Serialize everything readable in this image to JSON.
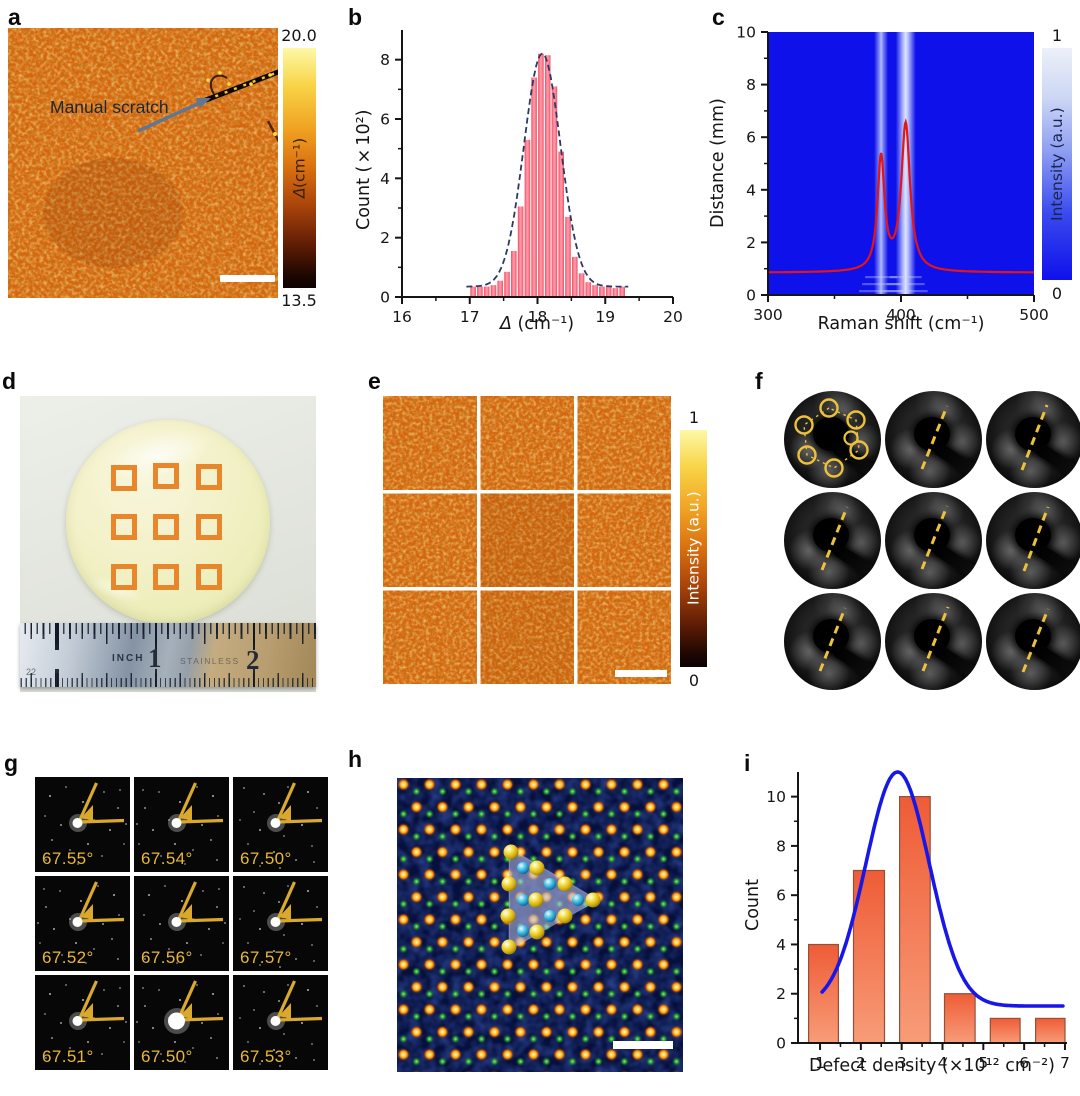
{
  "panels": {
    "a": {
      "label": "a",
      "annotation": "Manual scratch",
      "colorbar": {
        "max": "20.0",
        "min": "13.5",
        "label": "Δ (cm⁻¹)",
        "symbol": "Δ",
        "units": " (cm⁻¹)"
      }
    },
    "b": {
      "label": "b"
    },
    "c": {
      "label": "c"
    },
    "d": {
      "label": "d",
      "ruler": {
        "unit_word": "INCH",
        "mark_1": "1",
        "mark_2": "2",
        "brand": "STAINLESS",
        "cm_mark": "22"
      }
    },
    "e": {
      "label": "e",
      "colorbar": {
        "max": "1",
        "min": "0",
        "label": "Intensity (a.u.)"
      }
    },
    "f": {
      "label": "f"
    },
    "g": {
      "label": "g",
      "angles": [
        "67.55°",
        "67.54°",
        "67.50°",
        "67.52°",
        "67.56°",
        "67.57°",
        "67.51°",
        "67.50°",
        "67.53°"
      ]
    },
    "h": {
      "label": "h"
    },
    "i": {
      "label": "i"
    }
  },
  "chart_data": [
    {
      "panel": "b",
      "type": "bar",
      "xlabel": "Δ (cm⁻¹)",
      "xlabel_symbol": "Δ",
      "xlabel_units": " (cm⁻¹)",
      "ylabel": "Count (×10²)",
      "xlim": [
        16,
        20
      ],
      "ylim": [
        0,
        9
      ],
      "xticks": [
        "16",
        "17",
        "18",
        "19",
        "20"
      ],
      "yticks": [
        "0",
        "2",
        "4",
        "6",
        "8"
      ],
      "bin_start": 17.0,
      "bin_width": 0.1,
      "counts_x100": [
        0.35,
        0.35,
        0.35,
        0.4,
        0.55,
        0.85,
        1.55,
        3.05,
        5.3,
        7.4,
        8.2,
        8.15,
        7.1,
        4.9,
        2.7,
        1.35,
        0.8,
        0.5,
        0.4,
        0.35,
        0.35,
        0.3,
        0.35
      ],
      "fit": {
        "shape": "gaussian",
        "center": 18.07,
        "sigma": 0.27,
        "amplitude": 8.2,
        "baseline": 0.35,
        "domain": [
          16.95,
          19.35
        ]
      },
      "bar_color": "#ef4f66",
      "fit_color": "#2b3a64",
      "legend": "none",
      "grid": false
    },
    {
      "panel": "c",
      "type": "heatmap",
      "xlabel": "Raman shift (cm⁻¹)",
      "ylabel": "Distance (mm)",
      "xlim": [
        300,
        500
      ],
      "ylim": [
        0,
        10
      ],
      "xticks": [
        "300",
        "400",
        "500"
      ],
      "yticks": [
        "0",
        "2",
        "4",
        "6",
        "8",
        "10"
      ],
      "colorbar": {
        "label": "Intensity (a.u.)",
        "ticks": [
          "1",
          "0"
        ],
        "max": 1,
        "min": 0
      },
      "background": "#0f11ea",
      "line_color": "#e31515",
      "spectrum_baseline_mm": 0.85,
      "peaks": [
        {
          "center": 385,
          "height_mm": 4.3,
          "gamma": 3.2
        },
        {
          "center": 403.5,
          "height_mm": 5.6,
          "gamma": 4.0
        }
      ],
      "stripes": [
        {
          "center": 385,
          "width": 14,
          "bright": 0.85
        },
        {
          "center": 403.5,
          "width": 20,
          "bright": 0.95
        }
      ]
    },
    {
      "panel": "i",
      "type": "bar",
      "xlabel": "Defect density (×10¹² cm⁻²)",
      "ylabel": "Count",
      "xlim": [
        0.46,
        7.05
      ],
      "ylim": [
        0,
        11
      ],
      "xticks": [
        "1",
        "2",
        "3",
        "4",
        "5",
        "6",
        "7"
      ],
      "yticks": [
        "0",
        "2",
        "4",
        "6",
        "8",
        "10"
      ],
      "bars": [
        {
          "from": 0.72,
          "to": 1.45,
          "count": 4
        },
        {
          "from": 1.82,
          "to": 2.58,
          "count": 7
        },
        {
          "from": 2.95,
          "to": 3.7,
          "count": 10
        },
        {
          "from": 4.05,
          "to": 4.8,
          "count": 2
        },
        {
          "from": 5.17,
          "to": 5.9,
          "count": 1
        },
        {
          "from": 6.28,
          "to": 7.0,
          "count": 1
        }
      ],
      "fit": {
        "shape": "gaussian",
        "center": 2.9,
        "sigma": 0.78,
        "amplitude": 11,
        "baseline": 1.5,
        "domain": [
          1.05,
          6.95
        ]
      },
      "bar_color_top": "#ee5c36",
      "bar_color_bottom": "#f89c78",
      "fit_color": "#1717e8",
      "legend": "none",
      "grid": false
    }
  ]
}
